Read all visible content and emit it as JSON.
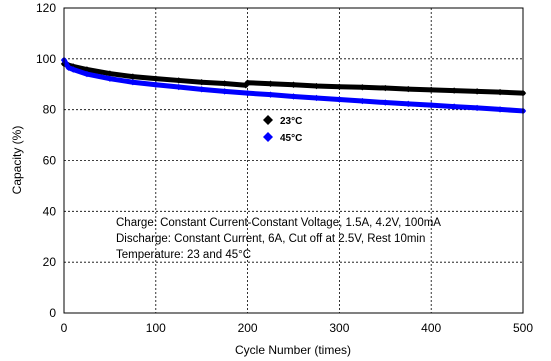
{
  "chart_data": {
    "type": "line",
    "xlabel": "Cycle Number (times)",
    "ylabel": "Capacity (%)",
    "xlim": [
      0,
      500
    ],
    "ylim": [
      0,
      120
    ],
    "xticks": [
      "0",
      "100",
      "200",
      "300",
      "400",
      "500"
    ],
    "yticks": [
      "0",
      "20",
      "40",
      "60",
      "80",
      "100",
      "120"
    ],
    "grid": true,
    "legend_position": "center",
    "series": [
      {
        "name": "23°C",
        "color": "#000000",
        "marker": "diamond",
        "x": [
          0,
          5,
          10,
          25,
          50,
          75,
          100,
          125,
          150,
          175,
          198,
          200,
          225,
          250,
          275,
          300,
          325,
          350,
          375,
          400,
          425,
          450,
          475,
          500
        ],
        "y": [
          98,
          97.5,
          97,
          95.8,
          94.2,
          93,
          92.2,
          91.5,
          90.8,
          90.3,
          89.6,
          90.6,
          90.2,
          89.8,
          89.3,
          89,
          88.8,
          88.5,
          88.1,
          87.8,
          87.5,
          87.2,
          86.9,
          86.5
        ]
      },
      {
        "name": "45°C",
        "color": "#0000ff",
        "marker": "diamond",
        "x": [
          0,
          5,
          10,
          25,
          50,
          75,
          100,
          125,
          150,
          175,
          200,
          225,
          250,
          275,
          300,
          325,
          350,
          375,
          400,
          425,
          450,
          475,
          500
        ],
        "y": [
          99.5,
          96.5,
          95.8,
          94,
          92.2,
          90.8,
          89.8,
          88.9,
          88,
          87.2,
          86.5,
          85.9,
          85.2,
          84.6,
          84,
          83.4,
          82.8,
          82.3,
          81.8,
          81.2,
          80.7,
          80.1,
          79.5
        ]
      }
    ],
    "annotations": [
      "Charge: Constant Current-Constant Voltage, 1.5A, 4.2V, 100mA",
      "Discharge: Constant Current, 6A, Cut off at 2.5V, Rest 10min",
      "Temperature: 23 and 45°C"
    ]
  }
}
